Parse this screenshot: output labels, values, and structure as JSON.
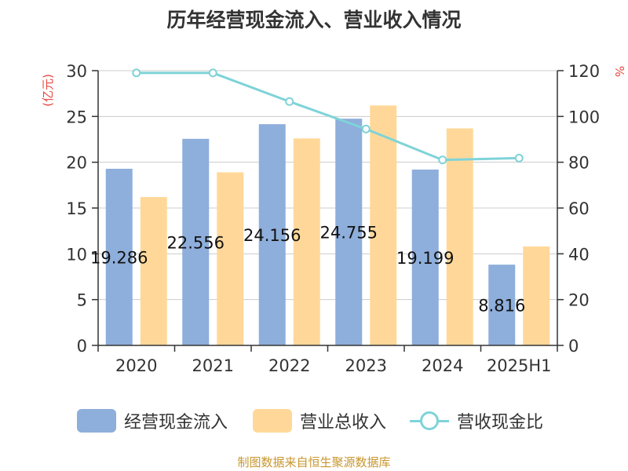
{
  "title": "历年经营现金流入、营业收入情况",
  "source": "制图数据来自恒生聚源数据库",
  "left_unit": "(亿元)",
  "right_unit": "%",
  "colors": {
    "cash_inflow": "#8eaedb",
    "revenue": "#ffd899",
    "ratio": "#7fd3d8",
    "unit_label": "#e8463e",
    "axis": "#333333",
    "grid": "#cccccc"
  },
  "legend": [
    {
      "name": "经营现金流入",
      "kind": "bar",
      "color": "#8eaedb"
    },
    {
      "name": "营业总收入",
      "kind": "bar",
      "color": "#ffd899"
    },
    {
      "name": "营收现金比",
      "kind": "line",
      "color": "#7fd3d8"
    }
  ],
  "chart_data": {
    "type": "bar",
    "title": "历年经营现金流入、营业收入情况",
    "categories": [
      "2020",
      "2021",
      "2022",
      "2023",
      "2024",
      "2025H1"
    ],
    "series": [
      {
        "name": "经营现金流入",
        "type": "bar",
        "axis": "left",
        "values": [
          19.286,
          22.556,
          24.156,
          24.755,
          19.199,
          8.816
        ],
        "labels": [
          "19.286",
          "22.556",
          "24.156",
          "24.755",
          "19.199",
          "8.816"
        ]
      },
      {
        "name": "营业总收入",
        "type": "bar",
        "axis": "left",
        "values": [
          16.2,
          18.9,
          22.6,
          26.2,
          23.7,
          10.8
        ]
      },
      {
        "name": "营收现金比",
        "type": "line",
        "axis": "right",
        "values": [
          119,
          119,
          106.5,
          94.5,
          81,
          81.8
        ]
      }
    ],
    "left_axis": {
      "label": "(亿元)",
      "ylim": [
        0,
        30
      ],
      "ticks": [
        0,
        5,
        10,
        15,
        20,
        25,
        30
      ]
    },
    "right_axis": {
      "label": "%",
      "ylim": [
        0,
        120
      ],
      "ticks": [
        0,
        20,
        40,
        60,
        80,
        100,
        120
      ]
    },
    "grid": true,
    "legend_position": "bottom"
  }
}
